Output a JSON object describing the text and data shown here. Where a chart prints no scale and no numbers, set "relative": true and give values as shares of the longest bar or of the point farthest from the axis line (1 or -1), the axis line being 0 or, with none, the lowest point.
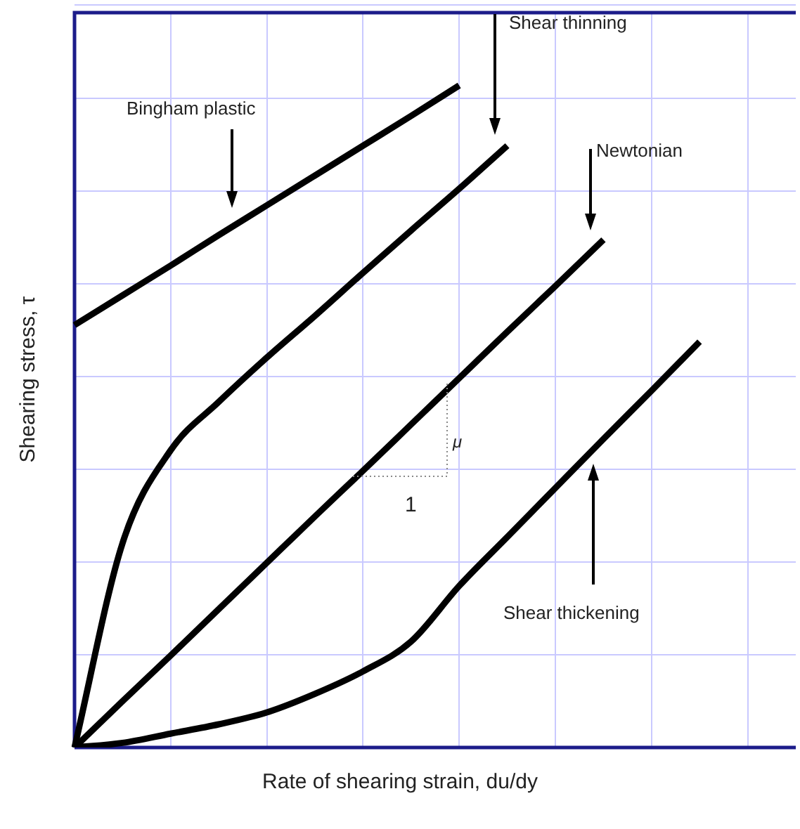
{
  "chart_data": {
    "type": "line",
    "relative": true,
    "xlabel": "Rate of shearing strain, du/dy",
    "ylabel": "Shearing stress, τ",
    "categories": [
      null,
      null,
      null,
      null,
      null,
      null,
      null,
      null,
      null,
      null,
      null,
      null,
      null,
      null,
      null,
      null
    ],
    "series": [
      {
        "color": "#000000",
        "values": [
          0.638,
          0.683,
          0.728,
          0.774,
          0.819,
          0.864,
          0.909,
          0.954,
          1,
          null,
          null,
          null,
          null,
          null,
          null,
          null
        ]
      },
      {
        "color": "#000000",
        "values": [
          0,
          0.309,
          0.449,
          0.522,
          0.589,
          0.652,
          0.717,
          0.781,
          0.844,
          0.909,
          null,
          null,
          null,
          null,
          null,
          null
        ]
      },
      {
        "color": "#000000",
        "values": [
          0,
          0.07,
          0.139,
          0.209,
          0.279,
          0.349,
          0.418,
          0.488,
          0.558,
          0.628,
          0.697,
          0.767,
          null,
          null,
          null,
          null
        ]
      },
      {
        "color": "#000000",
        "values": [
          0,
          0.007,
          0.021,
          0.035,
          0.053,
          0.081,
          0.115,
          0.16,
          0.244,
          0.318,
          0.392,
          0.466,
          0.539,
          0.613,
          null,
          null
        ]
      }
    ],
    "annotations": [
      "Bingham plastic",
      "Shear thinning",
      "Newtonian",
      "Shear thickening",
      "μ",
      "1"
    ],
    "grid": true,
    "tick_labels": false,
    "legend": false,
    "marker": "none",
    "line_style": "solid"
  }
}
